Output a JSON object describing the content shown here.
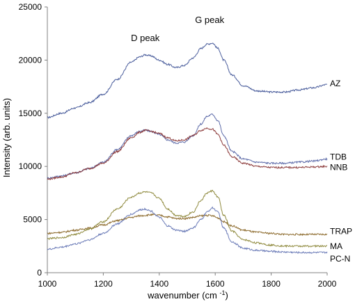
{
  "chart_data": {
    "type": "line",
    "xlabel": "wavenumber (cm-1)",
    "ylabel": "Intensity (arb. units)",
    "xlim": [
      1000,
      2000
    ],
    "ylim": [
      0,
      25000
    ],
    "x_ticks": [
      1000,
      1200,
      1400,
      1600,
      1800,
      2000
    ],
    "y_ticks": [
      0,
      5000,
      10000,
      15000,
      20000,
      25000
    ],
    "grid": false,
    "legend": "inline labels at right end of each series",
    "annotations": [
      {
        "text": "D peak",
        "x": 1350,
        "y": 21800
      },
      {
        "text": "G peak",
        "x": 1580,
        "y": 23500
      }
    ],
    "x": [
      1000,
      1050,
      1100,
      1150,
      1200,
      1250,
      1300,
      1330,
      1350,
      1370,
      1400,
      1430,
      1460,
      1490,
      1520,
      1550,
      1570,
      1590,
      1610,
      1630,
      1660,
      1700,
      1750,
      1800,
      1850,
      1900,
      1950,
      2000
    ],
    "series": [
      {
        "name": "AZ",
        "color": "#4a5d9c",
        "values": [
          14600,
          15000,
          15500,
          16000,
          16800,
          18200,
          19800,
          20300,
          20500,
          20400,
          20000,
          19600,
          19300,
          19500,
          20200,
          21100,
          21500,
          21600,
          21100,
          20000,
          18600,
          17600,
          17100,
          17000,
          17000,
          17200,
          17400,
          17700
        ]
      },
      {
        "name": "TDB",
        "color": "#5c6aa8",
        "values": [
          8900,
          9100,
          9400,
          9800,
          10400,
          11600,
          12900,
          13300,
          13400,
          13300,
          13000,
          12500,
          12200,
          12300,
          12900,
          14000,
          14700,
          14900,
          14300,
          12900,
          11400,
          10700,
          10400,
          10300,
          10300,
          10400,
          10500,
          10700
        ]
      },
      {
        "name": "NNB",
        "color": "#8c3a3a",
        "values": [
          8800,
          9000,
          9400,
          9800,
          10300,
          11400,
          12700,
          13200,
          13400,
          13300,
          13100,
          12700,
          12400,
          12500,
          12900,
          13400,
          13600,
          13500,
          13000,
          12000,
          10900,
          10300,
          10000,
          9900,
          9900,
          9900,
          9950,
          10000
        ]
      },
      {
        "name": "TRAP",
        "color": "#8c6a2c",
        "values": [
          3700,
          3800,
          4000,
          4200,
          4500,
          4900,
          5200,
          5350,
          5400,
          5450,
          5400,
          5250,
          5100,
          5100,
          5200,
          5350,
          5400,
          5350,
          5150,
          4800,
          4400,
          4000,
          3800,
          3700,
          3600,
          3600,
          3600,
          3600
        ]
      },
      {
        "name": "MA",
        "color": "#8f8a3e",
        "values": [
          3200,
          3300,
          3600,
          4100,
          4800,
          6000,
          7100,
          7500,
          7600,
          7500,
          7000,
          6000,
          5400,
          5300,
          5700,
          6800,
          7500,
          7700,
          7100,
          5400,
          3900,
          3100,
          2800,
          2600,
          2500,
          2500,
          2500,
          2500
        ]
      },
      {
        "name": "PC-N",
        "color": "#6c7cb8",
        "values": [
          2200,
          2400,
          2700,
          3100,
          3700,
          4600,
          5500,
          5900,
          6000,
          5800,
          5200,
          4400,
          4000,
          3900,
          4200,
          5000,
          5700,
          6100,
          5700,
          4200,
          2900,
          2300,
          2100,
          2000,
          1950,
          1900,
          1900,
          1900
        ]
      }
    ]
  }
}
